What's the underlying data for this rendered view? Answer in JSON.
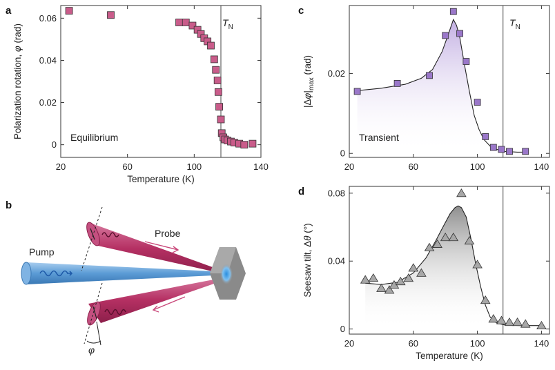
{
  "colors": {
    "panel_a_marker": "#c95c8a",
    "panel_c_marker": "#9a77c9",
    "panel_d_marker": "#a7a7a7",
    "pump_beam": "#5b9bd5",
    "probe_beam": "#b53063",
    "sample": "#8a8a8a",
    "sample_spot": "#2a8fe0"
  },
  "panel_b": {
    "letter": "b",
    "pump_label": "Pump",
    "probe_label": "Probe",
    "angle_label": "φ"
  },
  "chart_data": [
    {
      "panel": "a",
      "type": "scatter",
      "ylabel_main": "Polarization rotation, ",
      "ylabel_symbol": "φ",
      "ylabel_unit": " (rad)",
      "xlabel": "Temperature (K)",
      "annotation": "Equilibrium",
      "vline_label_main": "T",
      "vline_label_sub": "N",
      "vline_x": 116,
      "xlim": [
        20,
        140
      ],
      "ylim": [
        -0.006,
        0.066
      ],
      "xticks": [
        20,
        60,
        100,
        140
      ],
      "xtick_labels": [
        "20",
        "60",
        "100",
        "140"
      ],
      "yticks": [
        0,
        0.02,
        0.04,
        0.06
      ],
      "ytick_labels": [
        "0",
        "0.02",
        "0.04",
        "0.06"
      ],
      "marker": "square",
      "points": [
        [
          25,
          0.0635
        ],
        [
          50,
          0.0615
        ],
        [
          91,
          0.058
        ],
        [
          95,
          0.058
        ],
        [
          99,
          0.0565
        ],
        [
          102,
          0.0545
        ],
        [
          104,
          0.0525
        ],
        [
          106,
          0.0505
        ],
        [
          108,
          0.049
        ],
        [
          110,
          0.047
        ],
        [
          112,
          0.0405
        ],
        [
          113,
          0.0355
        ],
        [
          114,
          0.0305
        ],
        [
          114.5,
          0.025
        ],
        [
          115,
          0.018
        ],
        [
          116,
          0.012
        ],
        [
          116.5,
          0.0055
        ],
        [
          117.5,
          0.0035
        ],
        [
          118.5,
          0.0025
        ],
        [
          120,
          0.002
        ],
        [
          122,
          0.0015
        ],
        [
          124,
          0.001
        ],
        [
          127,
          0.0005
        ],
        [
          130,
          0.0
        ],
        [
          135,
          0.0005
        ]
      ]
    },
    {
      "panel": "c",
      "type": "scatter",
      "ylabel_main": "|Δ",
      "ylabel_symbol": "φ",
      "ylabel_sub": "max",
      "ylabel_unit": " (rad)",
      "xlabel": "",
      "annotation": "Transient",
      "vline_label_main": "T",
      "vline_label_sub": "N",
      "vline_x": 116,
      "xlim": [
        20,
        145
      ],
      "ylim": [
        -0.001,
        0.037
      ],
      "xticks": [
        20,
        60,
        100,
        140
      ],
      "xtick_labels": [
        "20",
        "60",
        "100",
        "140"
      ],
      "yticks": [
        0,
        0.02
      ],
      "ytick_labels": [
        "0",
        "0.02"
      ],
      "marker": "square",
      "points": [
        [
          25,
          0.0155
        ],
        [
          50,
          0.0175
        ],
        [
          70,
          0.0195
        ],
        [
          80,
          0.0295
        ],
        [
          85,
          0.0355
        ],
        [
          89,
          0.03
        ],
        [
          93,
          0.023
        ],
        [
          100,
          0.0128
        ],
        [
          105,
          0.0042
        ],
        [
          110,
          0.0015
        ],
        [
          115,
          0.001
        ],
        [
          120,
          0.0005
        ],
        [
          130,
          0.0005
        ]
      ],
      "fit_curve": [
        [
          25,
          0.0157
        ],
        [
          40,
          0.0163
        ],
        [
          55,
          0.0173
        ],
        [
          65,
          0.0188
        ],
        [
          72,
          0.021
        ],
        [
          78,
          0.0255
        ],
        [
          82,
          0.03
        ],
        [
          85,
          0.0335
        ],
        [
          87,
          0.032
        ],
        [
          89,
          0.029
        ],
        [
          92,
          0.022
        ],
        [
          95,
          0.0155
        ],
        [
          98,
          0.0095
        ],
        [
          101,
          0.006
        ],
        [
          104,
          0.0035
        ],
        [
          108,
          0.0018
        ],
        [
          112,
          0.001
        ],
        [
          117,
          0.0005
        ],
        [
          125,
          0.0003
        ],
        [
          132,
          0.0003
        ]
      ]
    },
    {
      "panel": "d",
      "type": "scatter",
      "ylabel_main": "Seesaw tilt, Δ",
      "ylabel_symbol": "θ",
      "ylabel_unit": " (°)",
      "xlabel": "Temperature (K)",
      "vline_x": 116,
      "xlim": [
        20,
        145
      ],
      "ylim": [
        -0.003,
        0.084
      ],
      "xticks": [
        20,
        60,
        100,
        140
      ],
      "xtick_labels": [
        "20",
        "60",
        "100",
        "140"
      ],
      "yticks": [
        0,
        0.04,
        0.08
      ],
      "ytick_labels": [
        "0",
        "0.04",
        "0.08"
      ],
      "marker": "triangle",
      "points": [
        [
          30,
          0.029
        ],
        [
          35,
          0.03
        ],
        [
          40,
          0.024
        ],
        [
          45,
          0.023
        ],
        [
          48,
          0.026
        ],
        [
          52,
          0.028
        ],
        [
          57,
          0.03
        ],
        [
          60,
          0.036
        ],
        [
          65,
          0.033
        ],
        [
          70,
          0.048
        ],
        [
          75,
          0.05
        ],
        [
          80,
          0.054
        ],
        [
          85,
          0.054
        ],
        [
          90,
          0.08
        ],
        [
          95,
          0.052
        ],
        [
          100,
          0.038
        ],
        [
          105,
          0.017
        ],
        [
          110,
          0.006
        ],
        [
          115,
          0.005
        ],
        [
          120,
          0.004
        ],
        [
          125,
          0.004
        ],
        [
          130,
          0.003
        ],
        [
          140,
          0.002
        ]
      ],
      "fit_curve": [
        [
          30,
          0.027
        ],
        [
          40,
          0.0262
        ],
        [
          50,
          0.0275
        ],
        [
          60,
          0.033
        ],
        [
          68,
          0.042
        ],
        [
          74,
          0.052
        ],
        [
          79,
          0.061
        ],
        [
          83,
          0.068
        ],
        [
          86,
          0.0715
        ],
        [
          88,
          0.0725
        ],
        [
          90,
          0.0715
        ],
        [
          93,
          0.066
        ],
        [
          96,
          0.053
        ],
        [
          99,
          0.038
        ],
        [
          102,
          0.025
        ],
        [
          105,
          0.014
        ],
        [
          108,
          0.007
        ],
        [
          112,
          0.0035
        ],
        [
          118,
          0.0022
        ],
        [
          128,
          0.002
        ],
        [
          140,
          0.002
        ]
      ]
    }
  ]
}
